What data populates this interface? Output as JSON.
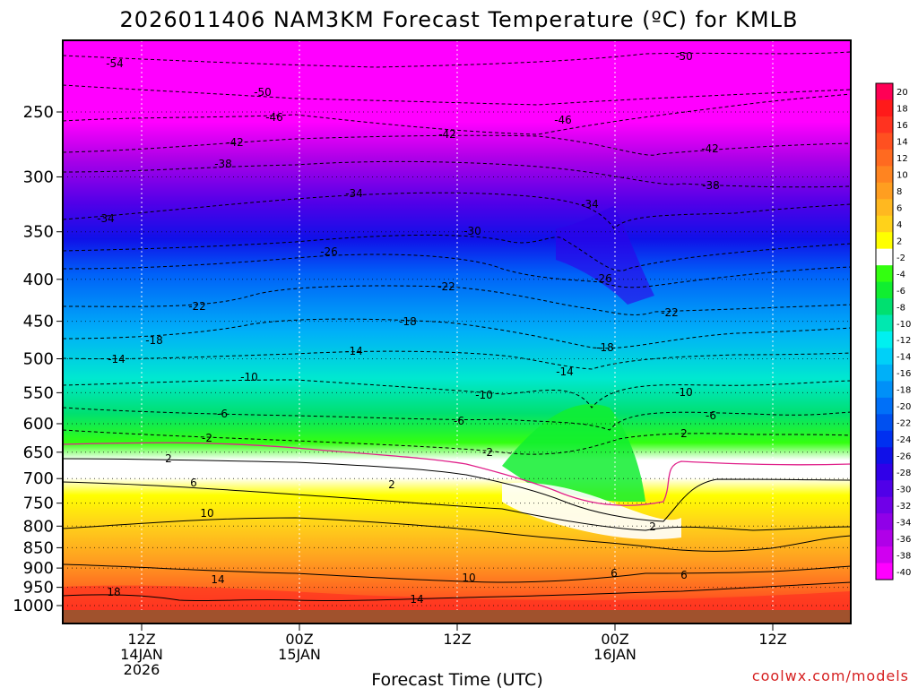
{
  "chart_data": {
    "type": "contour",
    "title": "2026011406 NAM3KM Forecast Temperature (ºC) for KMLB",
    "xlabel": "Forecast Time (UTC)",
    "ylabel": "",
    "credit": "coolwx.com/models",
    "y_ticks": [
      "250",
      "300",
      "350",
      "400",
      "450",
      "500",
      "550",
      "600",
      "650",
      "700",
      "750",
      "800",
      "850",
      "900",
      "950",
      "1000"
    ],
    "x_ticks": [
      {
        "line1": "12Z",
        "line2": "14JAN",
        "line3": "2026"
      },
      {
        "line1": "00Z",
        "line2": "15JAN",
        "line3": ""
      },
      {
        "line1": "12Z",
        "line2": "",
        "line3": ""
      },
      {
        "line1": "00Z",
        "line2": "16JAN",
        "line3": ""
      },
      {
        "line1": "12Z",
        "line2": "",
        "line3": ""
      }
    ],
    "colorbar": {
      "labels": [
        "20",
        "18",
        "16",
        "14",
        "12",
        "10",
        "8",
        "6",
        "4",
        "2",
        "-2",
        "-4",
        "-6",
        "-8",
        "-10",
        "-12",
        "-14",
        "-16",
        "-18",
        "-20",
        "-22",
        "-24",
        "-26",
        "-28",
        "-30",
        "-32",
        "-34",
        "-36",
        "-38",
        "-40"
      ],
      "colors": [
        "#ff0055",
        "#ff1a1a",
        "#ff3320",
        "#ff5020",
        "#ff6a20",
        "#ff8420",
        "#ff9e20",
        "#ffb820",
        "#ffd21a",
        "#ffff00",
        "#ffffff",
        "#33ff10",
        "#10ee30",
        "#00e070",
        "#00e8b0",
        "#00f0f0",
        "#00d0f8",
        "#00b0f8",
        "#0090f8",
        "#0070f8",
        "#0050f0",
        "#0030f0",
        "#1010e8",
        "#3000e8",
        "#5000e8",
        "#7000e8",
        "#9000e8",
        "#b000e8",
        "#d000f0",
        "#ff00ff"
      ]
    },
    "contour_labels": [
      "-54",
      "-50",
      "-50",
      "-46",
      "-46",
      "-42",
      "-42",
      "-42",
      "-38",
      "-38",
      "-34",
      "-34",
      "-34",
      "-30",
      "-26",
      "-26",
      "-22",
      "-22",
      "-22",
      "-18",
      "-18",
      "-18",
      "-14",
      "-14",
      "-14",
      "-10",
      "-10",
      "-10",
      "-6",
      "-6",
      "-6",
      "-2",
      "-2",
      "2",
      "2",
      "2",
      "2",
      "6",
      "6",
      "6",
      "10",
      "10",
      "14",
      "14",
      "18"
    ]
  }
}
